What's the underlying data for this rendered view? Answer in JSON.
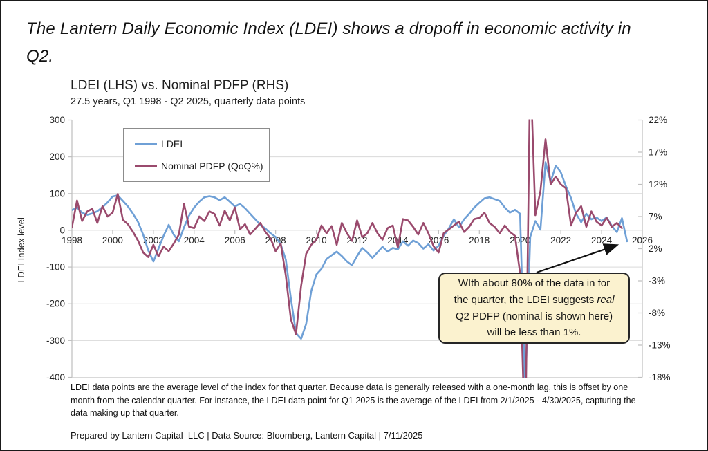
{
  "page": {
    "title": "The Lantern Daily Economic Index (LDEI) shows a dropoff in economic activity in Q2."
  },
  "chart": {
    "title": "LDEI (LHS) vs. Nominal PDFP (RHS)",
    "subtitle": "27.5 years, Q1 1998 - Q2 2025, quarterly data points"
  },
  "chart_data": {
    "type": "line",
    "title": "LDEI (LHS) vs. Nominal PDFP (RHS)",
    "subtitle": "27.5 years, Q1 1998 - Q2 2025, quarterly data points",
    "x_axis": {
      "min": 1998,
      "max": 2026,
      "tick_labels": [
        "1998",
        "2000",
        "2002",
        "2004",
        "2006",
        "2008",
        "2010",
        "2012",
        "2014",
        "2016",
        "2018",
        "2020",
        "2022",
        "2024",
        "2026"
      ],
      "tick_values": [
        1998,
        2000,
        2002,
        2004,
        2006,
        2008,
        2010,
        2012,
        2014,
        2016,
        2018,
        2020,
        2022,
        2024,
        2026
      ]
    },
    "y_left": {
      "label": "LDEI Index level",
      "min": -400,
      "max": 300,
      "tick_values": [
        300,
        200,
        100,
        0,
        -100,
        -200,
        -300,
        -400
      ],
      "tick_labels": [
        "300",
        "200",
        "100",
        "0",
        "-100",
        "-200",
        "-300",
        "-400"
      ]
    },
    "y_right": {
      "min": -18,
      "max": 22,
      "tick_values": [
        22,
        17,
        12,
        7,
        2,
        -3,
        -8,
        -13,
        -18
      ],
      "tick_labels": [
        "22%",
        "17%",
        "12%",
        "7%",
        "2%",
        "-3%",
        "-8%",
        "-13%",
        "-18%"
      ]
    },
    "grid": true,
    "legend_position": "top-left-inside",
    "colors": {
      "grid": "#D9D9D9",
      "axis": "#BFBFBF",
      "text": "#262626"
    },
    "series": [
      {
        "name": "LDEI",
        "axis": "left",
        "color": "#6FA0D6",
        "x_start": 1998.0,
        "x_step": 0.25,
        "values": [
          55,
          62,
          48,
          42,
          46,
          52,
          63,
          76,
          92,
          95,
          80,
          65,
          45,
          22,
          -12,
          -55,
          -85,
          -50,
          -15,
          15,
          -12,
          -30,
          8,
          40,
          62,
          78,
          90,
          93,
          90,
          82,
          90,
          78,
          65,
          72,
          60,
          45,
          30,
          15,
          5,
          -8,
          -18,
          -38,
          -80,
          -185,
          -280,
          -295,
          -255,
          -165,
          -120,
          -105,
          -78,
          -68,
          -58,
          -70,
          -85,
          -95,
          -70,
          -48,
          -60,
          -75,
          -60,
          -45,
          -58,
          -48,
          -52,
          -30,
          -42,
          -28,
          -35,
          -50,
          -38,
          -55,
          -42,
          -15,
          5,
          30,
          8,
          30,
          45,
          62,
          75,
          87,
          90,
          85,
          80,
          62,
          48,
          56,
          45,
          -440,
          -18,
          25,
          2,
          185,
          132,
          176,
          158,
          120,
          88,
          45,
          22,
          45,
          30,
          35,
          25,
          35,
          12,
          -5,
          33,
          -30
        ]
      },
      {
        "name": "Nominal PDFP (QoQ%)",
        "axis": "right",
        "color": "#9A4A6D",
        "x_start": 1998.0,
        "x_step": 0.25,
        "values": [
          5.3,
          9.5,
          6.3,
          7.8,
          8.2,
          6.0,
          8.6,
          7.0,
          7.6,
          10.5,
          6.5,
          5.8,
          4.6,
          3.2,
          1.4,
          0.7,
          2.6,
          0.8,
          2.3,
          1.6,
          2.8,
          4.2,
          9.0,
          5.4,
          5.2,
          7.0,
          6.3,
          7.8,
          7.4,
          5.6,
          7.9,
          6.4,
          8.4,
          5.0,
          5.8,
          4.2,
          5.1,
          6.0,
          4.6,
          3.6,
          1.6,
          2.8,
          -2.2,
          -9.0,
          -11.3,
          -3.8,
          1.2,
          2.6,
          3.4,
          5.6,
          4.4,
          5.5,
          2.6,
          6.0,
          4.4,
          3.2,
          6.4,
          3.8,
          4.4,
          6.0,
          4.4,
          3.4,
          5.2,
          5.6,
          2.2,
          6.6,
          6.4,
          5.4,
          4.2,
          6.0,
          4.4,
          2.4,
          1.4,
          4.4,
          5.0,
          5.6,
          6.2,
          4.6,
          5.4,
          6.6,
          6.8,
          7.6,
          6.0,
          5.4,
          4.4,
          5.6,
          4.6,
          4.0,
          -1.8,
          -29,
          31,
          7.2,
          11.0,
          19.0,
          12.0,
          13.2,
          12.0,
          11.4,
          5.6,
          7.6,
          8.6,
          5.4,
          7.8,
          6.2,
          5.6,
          6.8,
          5.4,
          6.0,
          5.2
        ]
      }
    ]
  },
  "annotation": {
    "line1": "WIth about 80% of the data in for",
    "line2_prefix": "the quarter, the LDEI suggests ",
    "line2_italic": "real",
    "line3": "Q2 PDFP (nominal is shown here)",
    "line4": "will be less than 1%."
  },
  "footnote": {
    "text": "LDEI data points are the average level of the index for that quarter. Because data is generally released with a one-month lag, this is offset by one month from the calendar quarter. For instance, the LDEI data point for Q1 2025 is the average of the LDEI from 2/1/2025 - 4/30/2025, capturing the data making up that quarter."
  },
  "credit": {
    "text": "Prepared by Lantern Capital  LLC | Data Source: Bloomberg, Lantern Capital | 7/11/2025"
  }
}
